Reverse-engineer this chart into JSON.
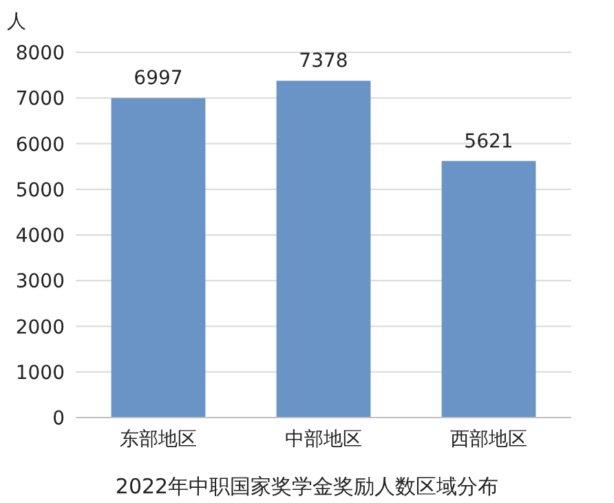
{
  "chart_data": {
    "type": "bar",
    "title": "2022年中职国家奖学金奖励人数区域分布",
    "ylabel": "人",
    "categories": [
      "东部地区",
      "中部地区",
      "西部地区"
    ],
    "values": [
      6997,
      7378,
      5621
    ],
    "color": "#6a93c6",
    "ylim": [
      0,
      8000
    ],
    "yticks": [
      0,
      1000,
      2000,
      3000,
      4000,
      5000,
      6000,
      7000,
      8000
    ],
    "grid": "y",
    "data_labels": true
  }
}
